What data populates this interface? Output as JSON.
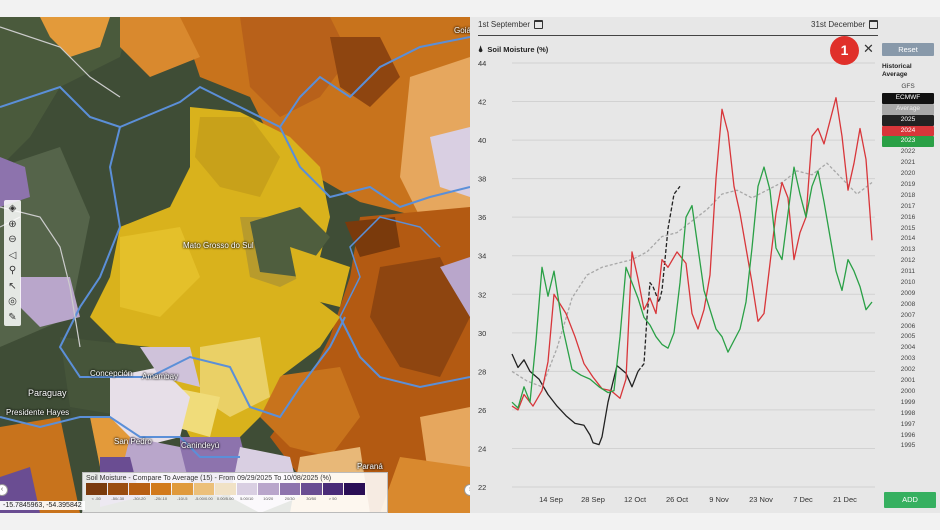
{
  "map": {
    "labels": {
      "state": "Mato Grosso do Sul",
      "country": "Paraguay",
      "concepcion": "Concepción",
      "amambay": "Amambay",
      "presidente_hayes": "Presidente Hayes",
      "san_pedro": "San Pedro",
      "canindeyu": "Canindeyú",
      "parana": "Paraná",
      "goias": "Goiás"
    },
    "legend": {
      "title": "Soil Moisture - Compare To Average (15) - From 09/29/2025 To 10/08/2025 (%)",
      "colors": [
        "#7a3a0c",
        "#9a4c10",
        "#b85f12",
        "#d27a1c",
        "#e09a3c",
        "#ecc07a",
        "#f1e2c6",
        "#d9cfe2",
        "#b9a6cb",
        "#8d73ad",
        "#6a4d92",
        "#4a2b77",
        "#2a0e55"
      ],
      "ticks": [
        "< -50",
        "-50/-30",
        "-30/-20",
        "-20/-10",
        "-10/-5",
        "-5.00/0.00",
        "0.00/5.00",
        "5.00/10",
        "10/20",
        "20/30",
        "30/50",
        "> 50"
      ]
    },
    "coords": "-15.7845963, -54.395842",
    "tools": [
      "layers-icon",
      "zoom-in-icon",
      "zoom-out-icon",
      "locate-icon",
      "search-icon",
      "pointer-icon",
      "target-icon",
      "draw-icon"
    ]
  },
  "panel": {
    "date_start": "1st September",
    "date_end": "31st December",
    "title": "Soil Moisture (%)",
    "badge": "1",
    "reset_label": "Reset",
    "historical_label": "Historical Average",
    "add_label": "ADD",
    "models": [
      "GFS",
      "ECMWF",
      "Average"
    ],
    "years": [
      "2025",
      "2024",
      "2023",
      "2022",
      "2021",
      "2020",
      "2019",
      "2018",
      "2017",
      "2016",
      "2015",
      "2014",
      "2013",
      "2012",
      "2011",
      "2010",
      "2009",
      "2008",
      "2007",
      "2006",
      "2005",
      "2004",
      "2003",
      "2002",
      "2001",
      "2000",
      "1999",
      "1998",
      "1997",
      "1996",
      "1995"
    ]
  },
  "chart_data": {
    "type": "line",
    "title": "Soil Moisture (%)",
    "x_ticks": [
      "14 Sep",
      "28 Sep",
      "12 Oct",
      "26 Oct",
      "9 Nov",
      "23 Nov",
      "7 Dec",
      "21 Dec"
    ],
    "x_tick_days": [
      13,
      27,
      41,
      55,
      69,
      83,
      97,
      111
    ],
    "ylim": [
      22,
      44
    ],
    "y_ticks": [
      22,
      24,
      26,
      28,
      30,
      32,
      34,
      36,
      38,
      40,
      42,
      44
    ],
    "x_domain_days": [
      0,
      121
    ],
    "series": [
      {
        "name": "2025",
        "color": "#222222",
        "dash": "none",
        "x": [
          0,
          2,
          4,
          6,
          9,
          12,
          15,
          18,
          21,
          24,
          26,
          27,
          29,
          30,
          32,
          35,
          38,
          40,
          42
        ],
        "y": [
          28.9,
          28.2,
          28.6,
          28.0,
          27.6,
          26.8,
          26.2,
          25.7,
          25.3,
          25.2,
          24.7,
          24.3,
          24.2,
          24.6,
          26.4,
          28.3,
          27.9,
          27.2,
          28.0
        ]
      },
      {
        "name": "ECMWF",
        "color": "#222222",
        "dash": "4,2",
        "x": [
          42,
          44,
          45,
          46,
          47,
          49,
          50,
          52,
          54,
          56
        ],
        "y": [
          28.0,
          28.4,
          30.8,
          32.6,
          32.4,
          31.6,
          32.2,
          35.4,
          37.2,
          37.6
        ]
      },
      {
        "name": "Average",
        "color": "#a8a8a8",
        "dash": "3,2",
        "x": [
          0,
          5,
          10,
          15,
          20,
          25,
          30,
          35,
          40,
          45,
          50,
          55,
          60,
          65,
          70,
          75,
          80,
          85,
          90,
          95,
          100,
          105,
          110,
          115,
          120
        ],
        "y": [
          28.0,
          27.5,
          27.2,
          29.2,
          31.8,
          33.0,
          33.4,
          33.6,
          33.8,
          34.2,
          35.0,
          35.2,
          35.8,
          36.4,
          37.2,
          37.4,
          37.0,
          37.4,
          37.8,
          38.4,
          38.2,
          38.8,
          38.0,
          37.2,
          37.8
        ]
      },
      {
        "name": "2024",
        "color": "#d8363a",
        "dash": "none",
        "x": [
          0,
          2,
          4,
          7,
          10,
          12,
          14,
          16,
          18,
          21,
          24,
          27,
          30,
          33,
          36,
          38,
          40,
          42,
          44,
          46,
          48,
          50,
          52,
          55,
          58,
          60,
          62,
          64,
          66,
          68,
          70,
          72,
          74,
          76,
          78,
          80,
          82,
          84,
          86,
          88,
          90,
          92,
          94,
          96,
          98,
          100,
          102,
          104,
          106,
          108,
          110,
          112,
          114,
          116,
          118,
          120
        ],
        "y": [
          26.2,
          26.0,
          26.8,
          26.2,
          27.0,
          28.5,
          32.0,
          31.5,
          31.0,
          29.8,
          28.4,
          27.7,
          27.1,
          27.0,
          26.6,
          27.6,
          34.2,
          32.8,
          31.2,
          31.8,
          31.0,
          33.8,
          33.4,
          34.2,
          33.6,
          31.0,
          30.2,
          31.2,
          33.0,
          38.0,
          41.6,
          40.4,
          37.6,
          36.2,
          34.4,
          32.6,
          30.6,
          31.0,
          33.6,
          36.2,
          37.8,
          37.0,
          33.8,
          35.2,
          36.0,
          40.2,
          40.6,
          39.8,
          41.0,
          42.2,
          40.2,
          37.4,
          38.8,
          40.6,
          39.0,
          34.8
        ]
      },
      {
        "name": "2023",
        "color": "#2aa046",
        "dash": "none",
        "x": [
          0,
          2,
          4,
          6,
          8,
          10,
          12,
          14,
          17,
          20,
          23,
          26,
          29,
          32,
          34,
          36,
          38,
          40,
          42,
          44,
          46,
          48,
          50,
          52,
          54,
          56,
          58,
          60,
          62,
          64,
          66,
          68,
          70,
          72,
          74,
          76,
          78,
          80,
          82,
          84,
          86,
          88,
          90,
          92,
          94,
          96,
          98,
          100,
          102,
          104,
          106,
          108,
          110,
          112,
          114,
          116,
          118,
          120
        ],
        "y": [
          26.4,
          26.1,
          27.2,
          26.4,
          29.6,
          33.4,
          31.9,
          33.2,
          30.2,
          28.1,
          27.8,
          27.6,
          27.2,
          26.9,
          27.0,
          29.8,
          33.4,
          32.6,
          31.8,
          30.8,
          30.4,
          29.8,
          29.4,
          29.2,
          30.0,
          32.6,
          36.0,
          36.6,
          34.4,
          32.2,
          31.2,
          30.2,
          29.8,
          29.0,
          29.6,
          30.2,
          31.6,
          34.4,
          37.6,
          38.6,
          37.4,
          34.4,
          33.8,
          36.2,
          38.6,
          37.2,
          36.0,
          37.6,
          38.4,
          36.8,
          35.0,
          33.2,
          32.2,
          33.8,
          33.2,
          32.4,
          31.2,
          31.6
        ]
      }
    ]
  }
}
